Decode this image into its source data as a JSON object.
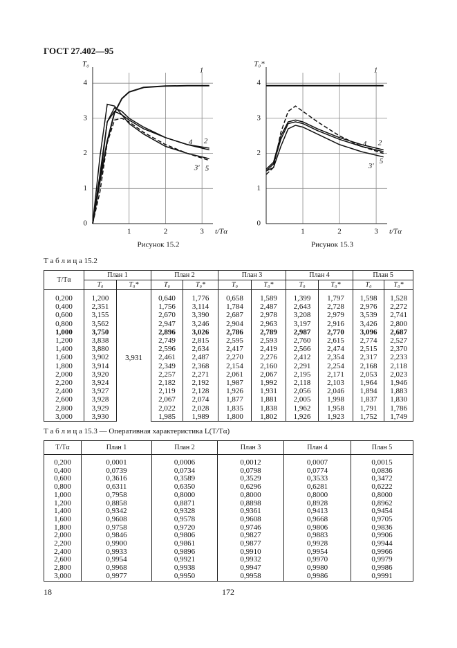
{
  "header": {
    "title": "ГОСТ 27.402—95"
  },
  "chart_data": [
    {
      "type": "line",
      "y_label": "T₀",
      "x_label": "t/Tα",
      "caption": "Рисунок 15.2",
      "x": [
        0,
        0.2,
        0.4,
        0.6,
        0.8,
        1.0,
        1.4,
        2.0,
        2.6,
        3.2
      ],
      "xlim": [
        0,
        3.3
      ],
      "ylim": [
        0,
        4.3
      ],
      "xticks": [
        1,
        2,
        3
      ],
      "yticks": [
        0,
        1,
        2,
        3,
        4
      ],
      "grid": true,
      "series": [
        {
          "name": "1",
          "color": "#111",
          "values": [
            0,
            1.2,
            2.35,
            3.16,
            3.56,
            3.75,
            3.88,
            3.92,
            3.93,
            3.93
          ]
        },
        {
          "name": "2",
          "color": "#111",
          "values": [
            0,
            1.2,
            2.9,
            3.3,
            3.2,
            3.0,
            2.75,
            2.45,
            2.25,
            2.1
          ]
        },
        {
          "name": "3'",
          "color": "#111",
          "values": [
            0,
            1.9,
            3.4,
            3.35,
            3.1,
            2.85,
            2.55,
            2.2,
            2.0,
            1.85
          ]
        },
        {
          "name": "4",
          "color": "#111",
          "values": [
            0,
            1.4,
            2.9,
            3.2,
            3.1,
            2.95,
            2.7,
            2.45,
            2.25,
            2.15
          ]
        },
        {
          "name": "5",
          "color": "#111",
          "dashed": true,
          "values": [
            0,
            0.9,
            2.3,
            2.95,
            3.0,
            2.9,
            2.6,
            2.25,
            2.0,
            1.8
          ]
        }
      ]
    },
    {
      "type": "line",
      "y_label": "T₀*",
      "x_label": "t/Tα",
      "caption": "Рисунок 15.3",
      "x": [
        0,
        0.2,
        0.4,
        0.6,
        0.8,
        1.0,
        1.4,
        2.0,
        2.6,
        3.2
      ],
      "xlim": [
        0,
        3.3
      ],
      "ylim": [
        0,
        4.3
      ],
      "xticks": [
        1,
        2,
        3
      ],
      "yticks": [
        0,
        1,
        2,
        3,
        4
      ],
      "grid": true,
      "series": [
        {
          "name": "1",
          "color": "#111",
          "values": [
            3.93,
            3.93,
            3.93,
            3.93,
            3.93,
            3.93,
            3.93,
            3.93,
            3.93,
            3.93
          ]
        },
        {
          "name": "2",
          "color": "#111",
          "values": [
            1.5,
            1.7,
            2.4,
            2.85,
            2.9,
            2.85,
            2.65,
            2.4,
            2.2,
            2.05
          ]
        },
        {
          "name": "3'",
          "color": "#111",
          "values": [
            1.5,
            1.6,
            2.2,
            2.7,
            2.8,
            2.75,
            2.55,
            2.25,
            2.05,
            1.9
          ]
        },
        {
          "name": "4",
          "color": "#111",
          "values": [
            1.55,
            1.75,
            2.5,
            2.9,
            2.95,
            2.9,
            2.7,
            2.45,
            2.25,
            2.1
          ]
        },
        {
          "name": "5",
          "color": "#111",
          "dashed": true,
          "values": [
            1.4,
            1.6,
            2.6,
            3.2,
            3.35,
            3.2,
            2.9,
            2.5,
            2.2,
            2.0
          ]
        }
      ]
    }
  ],
  "table_15_2": {
    "caption": "Т а б л и ц а 15.2",
    "header": [
      "T/Tα",
      "План 1",
      "План 2",
      "План 3",
      "План 4",
      "План 5"
    ],
    "subheader": [
      "T₀",
      "T₀*",
      "T₀",
      "T₀*",
      "T₀",
      "T₀*",
      "T₀",
      "T₀*",
      "T₀",
      "T₀*"
    ],
    "plan1_star": "3,931",
    "rows": [
      [
        "0,200",
        "1,200",
        "0,640",
        "1,776",
        "0,658",
        "1,589",
        "1,399",
        "1,797",
        "1,598",
        "1,528"
      ],
      [
        "0,400",
        "2,351",
        "1,756",
        "3,114",
        "1,784",
        "2,487",
        "2,643",
        "2,728",
        "2,976",
        "2,272"
      ],
      [
        "0,600",
        "3,155",
        "2,670",
        "3,390",
        "2,687",
        "2,978",
        "3,208",
        "2,979",
        "3,539",
        "2,741"
      ],
      [
        "0,800",
        "3,562",
        "2,947",
        "3,246",
        "2,904",
        "2,963",
        "3,197",
        "2,916",
        "3,426",
        "2,800"
      ],
      [
        "1,000",
        "3,750",
        "2,896",
        "3,026",
        "2,786",
        "2,789",
        "2,987",
        "2,770",
        "3,096",
        "2,687"
      ],
      [
        "1,200",
        "3,838",
        "2,749",
        "2,815",
        "2,595",
        "2,593",
        "2,760",
        "2,615",
        "2,774",
        "2,527"
      ],
      [
        "1,400",
        "3,880",
        "2,596",
        "2,634",
        "2,417",
        "2,419",
        "2,566",
        "2,474",
        "2,515",
        "2,370"
      ],
      [
        "1,600",
        "3,902",
        "2,461",
        "2,487",
        "2,270",
        "2,276",
        "2,412",
        "2,354",
        "2,317",
        "2,233"
      ],
      [
        "1,800",
        "3,914",
        "2,349",
        "2,368",
        "2,154",
        "2,160",
        "2,291",
        "2,254",
        "2,168",
        "2,118"
      ],
      [
        "2,000",
        "3,920",
        "2,257",
        "2,271",
        "2,061",
        "2,067",
        "2,195",
        "2,171",
        "2,053",
        "2,023"
      ],
      [
        "2,200",
        "3,924",
        "2,182",
        "2,192",
        "1,987",
        "1,992",
        "2,118",
        "2,103",
        "1,964",
        "1,946"
      ],
      [
        "2,400",
        "3,927",
        "2,119",
        "2,128",
        "1,926",
        "1,931",
        "2,056",
        "2,046",
        "1,894",
        "1,883"
      ],
      [
        "2,600",
        "3,928",
        "2,067",
        "2,074",
        "1,877",
        "1,881",
        "2,005",
        "1,998",
        "1,837",
        "1,830"
      ],
      [
        "2,800",
        "3,929",
        "2,022",
        "2,028",
        "1,835",
        "1,838",
        "1,962",
        "1,958",
        "1,791",
        "1,786"
      ],
      [
        "3,000",
        "3,930",
        "1,985",
        "1,989",
        "1,800",
        "1,802",
        "1,926",
        "1,923",
        "1,752",
        "1,749"
      ]
    ]
  },
  "table_15_3": {
    "caption": "Т а б л и ц а 15.3 — Оперативная характеристика L(T/Tα)",
    "header": [
      "T/Tα",
      "План 1",
      "План 2",
      "План 3",
      "План 4",
      "План 5"
    ],
    "rows": [
      [
        "0,200",
        "0,0001",
        "0,0006",
        "0,0012",
        "0,0007",
        "0,0015"
      ],
      [
        "0,400",
        "0,0739",
        "0,0734",
        "0,0798",
        "0,0774",
        "0,0836"
      ],
      [
        "0,600",
        "0,3616",
        "0,3589",
        "0,3529",
        "0,3533",
        "0,3472"
      ],
      [
        "0,800",
        "0,6311",
        "0,6350",
        "0,6296",
        "0,6281",
        "0,6222"
      ],
      [
        "1,000",
        "0,7958",
        "0,8000",
        "0,8000",
        "0,8000",
        "0,8000"
      ],
      [
        "1,200",
        "0,8858",
        "0,8871",
        "0,8898",
        "0,8928",
        "0,8962"
      ],
      [
        "1,400",
        "0,9342",
        "0,9328",
        "0,9361",
        "0,9413",
        "0,9454"
      ],
      [
        "1,600",
        "0,9608",
        "0,9578",
        "0,9608",
        "0,9668",
        "0,9705"
      ],
      [
        "1,800",
        "0,9758",
        "0,9720",
        "0,9746",
        "0,9806",
        "0,9836"
      ],
      [
        "2,000",
        "0,9846",
        "0,9806",
        "0,9827",
        "0,9883",
        "0,9906"
      ],
      [
        "2,200",
        "0,9900",
        "0,9861",
        "0,9877",
        "0,9928",
        "0,9944"
      ],
      [
        "2,400",
        "0,9933",
        "0,9896",
        "0,9910",
        "0,9954",
        "0,9966"
      ],
      [
        "2,600",
        "0,9954",
        "0,9921",
        "0,9932",
        "0,9970",
        "0,9979"
      ],
      [
        "2,800",
        "0,9968",
        "0,9938",
        "0,9947",
        "0,9980",
        "0,9986"
      ],
      [
        "3,000",
        "0,9977",
        "0,9950",
        "0,9958",
        "0,9986",
        "0,9991"
      ]
    ]
  },
  "footer": {
    "left": "18",
    "center": "172"
  }
}
